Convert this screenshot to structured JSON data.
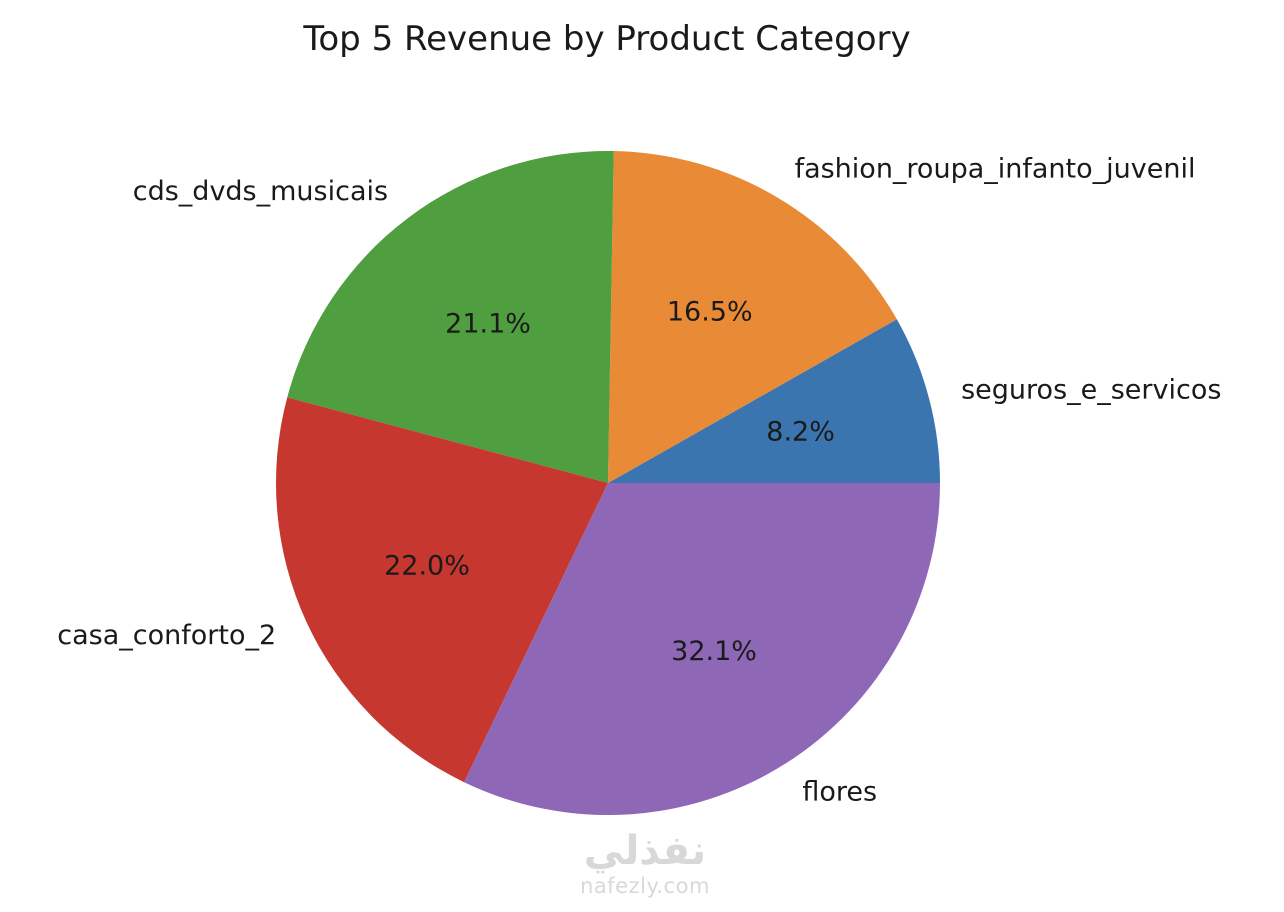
{
  "chart_data": {
    "type": "pie",
    "title": "Top 5 Revenue by Product Category",
    "start_angle_deg": 0,
    "direction": "counterclockwise",
    "slices": [
      {
        "label": "seguros_e_servicos",
        "value": 8.2,
        "pct_label": "8.2%",
        "color": "#3a75b0"
      },
      {
        "label": "fashion_roupa_infanto_juvenil",
        "value": 16.5,
        "pct_label": "16.5%",
        "color": "#e98a36"
      },
      {
        "label": "cds_dvds_musicais",
        "value": 21.1,
        "pct_label": "21.1%",
        "color": "#4f9e3f"
      },
      {
        "label": "casa_conforto_2",
        "value": 22.0,
        "pct_label": "22.0%",
        "color": "#c6372f"
      },
      {
        "label": "flores",
        "value": 32.1,
        "pct_label": "32.1%",
        "color": "#8e68b6"
      }
    ]
  },
  "watermark": {
    "logo_text": "نفذلي",
    "url_text": "nafezly.com"
  }
}
